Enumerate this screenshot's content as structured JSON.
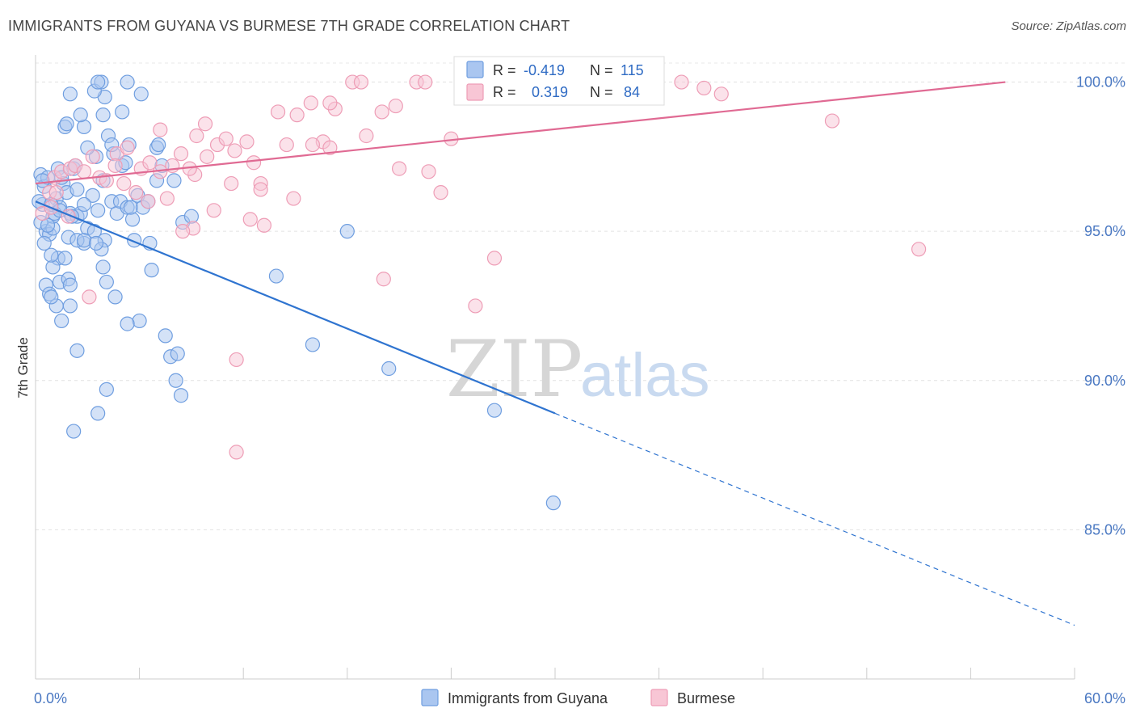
{
  "title": "IMMIGRANTS FROM GUYANA VS BURMESE 7TH GRADE CORRELATION CHART",
  "source": "Source: ZipAtlas.com",
  "watermark": {
    "zip": "ZIP",
    "atlas": "atlas"
  },
  "chart_data": {
    "type": "scatter",
    "ylabel": "7th Grade",
    "xlim": [
      0,
      60
    ],
    "ylim": [
      80,
      100.8
    ],
    "x_tick_labels": [
      {
        "value": 0,
        "label": "0.0%"
      },
      {
        "value": 60,
        "label": "60.0%"
      }
    ],
    "x_minor_ticks": [
      0,
      6,
      12,
      18,
      24,
      30,
      36,
      42,
      48,
      54,
      60
    ],
    "y_ticks": [
      {
        "value": 100,
        "label": "100.0%"
      },
      {
        "value": 95,
        "label": "95.0%"
      },
      {
        "value": 90,
        "label": "90.0%"
      },
      {
        "value": 85,
        "label": "85.0%"
      }
    ],
    "grid": "horizontal dashed",
    "legend_position": "top-center",
    "series": [
      {
        "name": "Immigrants from Guyana",
        "color": "#6f9ee0",
        "fill": "#aac6f0",
        "line_color": "#2f74d0",
        "r_label": "R =",
        "r_value": "-0.419",
        "n_label": "N =",
        "n_value": "115",
        "trend": {
          "x0": 0,
          "y0": 96.0,
          "x1": 30,
          "y1": 88.9,
          "dash_to_x": 60,
          "dash_to_y": 81.8
        },
        "points": [
          [
            0.3,
            96.9
          ],
          [
            0.5,
            96.5
          ],
          [
            0.4,
            95.9
          ],
          [
            0.6,
            95.0
          ],
          [
            0.3,
            95.3
          ],
          [
            0.8,
            94.9
          ],
          [
            0.5,
            94.6
          ],
          [
            1.0,
            95.1
          ],
          [
            0.7,
            96.8
          ],
          [
            1.2,
            96.1
          ],
          [
            1.4,
            95.8
          ],
          [
            1.0,
            95.5
          ],
          [
            1.6,
            96.6
          ],
          [
            1.3,
            97.1
          ],
          [
            1.8,
            96.3
          ],
          [
            2.2,
            97.1
          ],
          [
            2.0,
            95.6
          ],
          [
            2.4,
            95.5
          ],
          [
            1.9,
            94.8
          ],
          [
            2.6,
            95.6
          ],
          [
            3.0,
            95.1
          ],
          [
            2.8,
            94.6
          ],
          [
            3.3,
            96.2
          ],
          [
            3.6,
            95.7
          ],
          [
            3.9,
            96.7
          ],
          [
            3.4,
            95.0
          ],
          [
            4.0,
            94.7
          ],
          [
            3.8,
            94.4
          ],
          [
            4.4,
            96.0
          ],
          [
            4.7,
            95.6
          ],
          [
            5.0,
            97.2
          ],
          [
            4.9,
            96.0
          ],
          [
            5.3,
            95.8
          ],
          [
            5.6,
            95.4
          ],
          [
            5.9,
            96.2
          ],
          [
            5.5,
            95.8
          ],
          [
            6.2,
            95.8
          ],
          [
            6.6,
            94.6
          ],
          [
            7.0,
            96.7
          ],
          [
            7.3,
            97.2
          ],
          [
            7.0,
            97.8
          ],
          [
            8.0,
            96.7
          ],
          [
            8.5,
            95.3
          ],
          [
            9.0,
            95.5
          ],
          [
            4.5,
            97.6
          ],
          [
            5.2,
            97.3
          ],
          [
            4.2,
            98.2
          ],
          [
            3.5,
            97.5
          ],
          [
            2.8,
            98.5
          ],
          [
            1.7,
            98.5
          ],
          [
            2.6,
            98.9
          ],
          [
            3.9,
            98.9
          ],
          [
            4.0,
            99.5
          ],
          [
            3.4,
            99.7
          ],
          [
            2.0,
            99.6
          ],
          [
            3.8,
            100.0
          ],
          [
            3.6,
            100.0
          ],
          [
            5.3,
            100.0
          ],
          [
            6.1,
            99.6
          ],
          [
            5.0,
            99.0
          ],
          [
            1.8,
            98.6
          ],
          [
            7.1,
            97.9
          ],
          [
            5.4,
            97.9
          ],
          [
            4.4,
            97.9
          ],
          [
            3.0,
            97.8
          ],
          [
            1.5,
            96.8
          ],
          [
            2.4,
            96.4
          ],
          [
            1.1,
            95.6
          ],
          [
            1.3,
            94.1
          ],
          [
            1.0,
            93.8
          ],
          [
            0.6,
            93.2
          ],
          [
            1.4,
            93.3
          ],
          [
            1.9,
            93.4
          ],
          [
            0.9,
            94.2
          ],
          [
            0.8,
            92.9
          ],
          [
            1.2,
            92.5
          ],
          [
            0.9,
            92.8
          ],
          [
            2.0,
            93.2
          ],
          [
            3.9,
            93.8
          ],
          [
            4.1,
            93.3
          ],
          [
            4.6,
            92.8
          ],
          [
            2.4,
            94.7
          ],
          [
            1.7,
            94.1
          ],
          [
            2.8,
            94.7
          ],
          [
            3.5,
            94.6
          ],
          [
            6.5,
            96.0
          ],
          [
            5.7,
            94.7
          ],
          [
            6.7,
            93.7
          ],
          [
            6.0,
            92.0
          ],
          [
            5.3,
            91.9
          ],
          [
            7.5,
            91.5
          ],
          [
            7.8,
            90.8
          ],
          [
            8.2,
            90.9
          ],
          [
            8.1,
            90.0
          ],
          [
            8.4,
            89.5
          ],
          [
            4.1,
            89.7
          ],
          [
            3.6,
            88.9
          ],
          [
            2.2,
            88.3
          ],
          [
            1.5,
            92.0
          ],
          [
            2.4,
            91.0
          ],
          [
            2.0,
            92.5
          ],
          [
            0.2,
            96.0
          ],
          [
            0.4,
            96.7
          ],
          [
            0.7,
            95.2
          ],
          [
            0.9,
            95.9
          ],
          [
            13.9,
            93.5
          ],
          [
            16.0,
            91.2
          ],
          [
            18.0,
            95.0
          ],
          [
            20.4,
            90.4
          ],
          [
            26.5,
            89.0
          ],
          [
            29.9,
            85.9
          ],
          [
            2.1,
            95.5
          ],
          [
            1.4,
            95.7
          ],
          [
            2.8,
            95.9
          ],
          [
            2.3,
            97.2
          ]
        ]
      },
      {
        "name": "Burmese",
        "color": "#ee9db6",
        "fill": "#f8c6d5",
        "line_color": "#e06a93",
        "r_label": "R =",
        "r_value": "0.319",
        "n_label": "N =",
        "n_value": "84",
        "trend": {
          "x0": 0,
          "y0": 96.6,
          "x1": 56,
          "y1": 100.0
        },
        "points": [
          [
            0.4,
            95.6
          ],
          [
            0.8,
            96.3
          ],
          [
            1.1,
            96.8
          ],
          [
            1.5,
            97.0
          ],
          [
            2.0,
            97.1
          ],
          [
            2.3,
            97.2
          ],
          [
            2.8,
            97.0
          ],
          [
            3.3,
            97.5
          ],
          [
            3.7,
            96.8
          ],
          [
            4.1,
            96.7
          ],
          [
            4.7,
            97.6
          ],
          [
            5.3,
            97.8
          ],
          [
            6.1,
            97.1
          ],
          [
            6.6,
            97.3
          ],
          [
            7.2,
            97.0
          ],
          [
            7.9,
            97.2
          ],
          [
            8.4,
            97.6
          ],
          [
            9.2,
            96.9
          ],
          [
            9.9,
            97.5
          ],
          [
            10.5,
            97.9
          ],
          [
            11.0,
            98.1
          ],
          [
            11.5,
            97.7
          ],
          [
            12.2,
            98.0
          ],
          [
            13.0,
            96.6
          ],
          [
            14.5,
            97.9
          ],
          [
            15.1,
            98.9
          ],
          [
            15.9,
            99.3
          ],
          [
            16.6,
            98.0
          ],
          [
            17.3,
            99.1
          ],
          [
            17.0,
            97.8
          ],
          [
            18.3,
            100.0
          ],
          [
            18.8,
            100.0
          ],
          [
            20.0,
            99.0
          ],
          [
            20.8,
            99.2
          ],
          [
            22.0,
            100.0
          ],
          [
            22.5,
            100.0
          ],
          [
            25.5,
            100.0
          ],
          [
            26.9,
            100.0
          ],
          [
            28.5,
            100.0
          ],
          [
            30.0,
            100.0
          ],
          [
            31.8,
            100.0
          ],
          [
            34.5,
            100.0
          ],
          [
            37.3,
            100.0
          ],
          [
            38.6,
            99.8
          ],
          [
            39.6,
            99.6
          ],
          [
            46.0,
            98.7
          ],
          [
            51.0,
            94.4
          ],
          [
            28.0,
            100.0
          ],
          [
            29.5,
            99.5
          ],
          [
            21.0,
            97.1
          ],
          [
            22.7,
            97.0
          ],
          [
            23.4,
            96.3
          ],
          [
            24.0,
            98.1
          ],
          [
            19.1,
            98.2
          ],
          [
            26.5,
            94.1
          ],
          [
            25.4,
            92.5
          ],
          [
            20.1,
            93.4
          ],
          [
            16.0,
            97.9
          ],
          [
            14.9,
            96.1
          ],
          [
            13.2,
            95.2
          ],
          [
            12.4,
            95.4
          ],
          [
            11.3,
            96.6
          ],
          [
            10.3,
            95.7
          ],
          [
            9.1,
            95.1
          ],
          [
            8.5,
            95.0
          ],
          [
            7.6,
            96.1
          ],
          [
            6.5,
            96.0
          ],
          [
            5.8,
            96.3
          ],
          [
            5.1,
            96.6
          ],
          [
            4.6,
            97.2
          ],
          [
            3.1,
            92.8
          ],
          [
            1.9,
            95.5
          ],
          [
            1.2,
            96.3
          ],
          [
            0.9,
            95.8
          ],
          [
            11.6,
            90.7
          ],
          [
            11.6,
            87.6
          ],
          [
            13.0,
            96.4
          ],
          [
            7.2,
            98.4
          ],
          [
            8.9,
            97.1
          ],
          [
            9.3,
            98.2
          ],
          [
            9.8,
            98.6
          ],
          [
            12.6,
            97.3
          ],
          [
            17.0,
            99.3
          ],
          [
            14.0,
            99.0
          ]
        ]
      }
    ]
  }
}
